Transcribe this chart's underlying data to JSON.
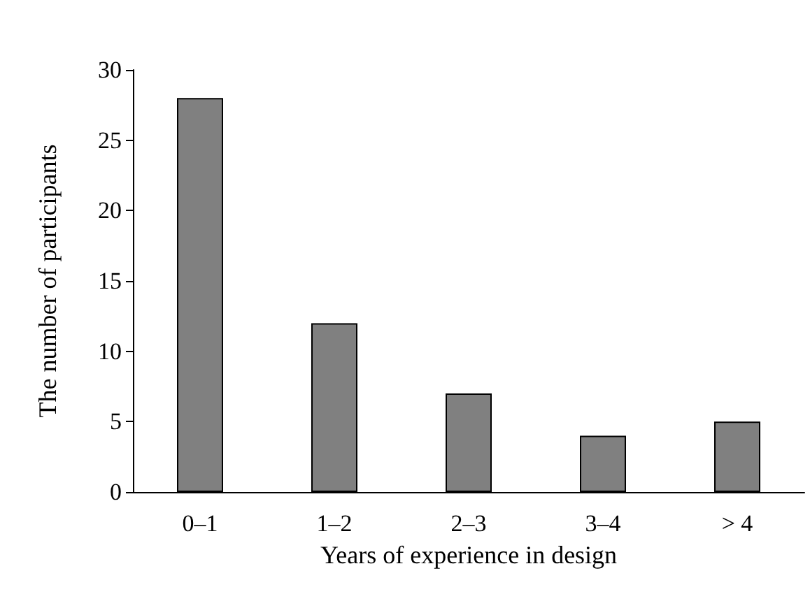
{
  "chart_data": {
    "type": "bar",
    "xlabel": "Years of experience in design",
    "ylabel": "The number of participants",
    "categories": [
      "0–1",
      "1–2",
      "2–3",
      "3–4",
      "> 4"
    ],
    "values": [
      28,
      12,
      7,
      4,
      5
    ],
    "color": "#808080",
    "ylim": [
      0,
      30
    ],
    "yticks": [
      0,
      5,
      10,
      15,
      20,
      25,
      30
    ],
    "grid": false
  }
}
